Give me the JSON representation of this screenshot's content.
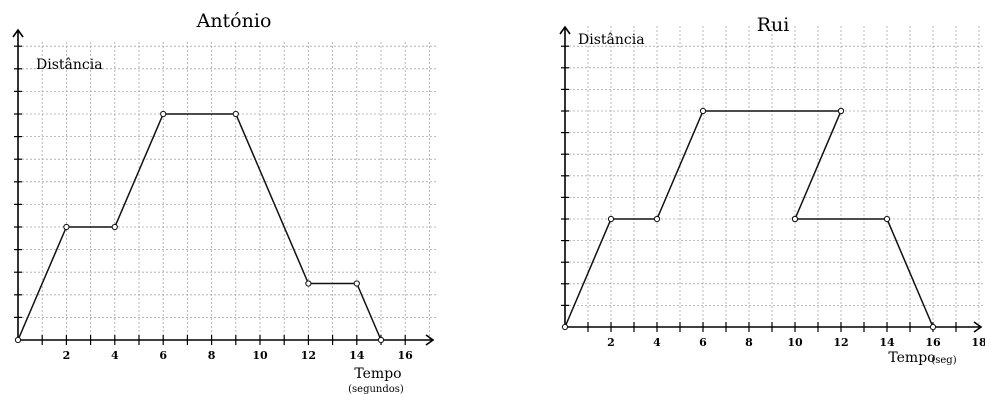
{
  "chart_data": [
    {
      "type": "line",
      "title": "António",
      "xlabel": "Tempo",
      "xlabel_sub": "(segundos)",
      "ylabel": "Distância",
      "x_ticks": [
        "2",
        "4",
        "6",
        "8",
        "10",
        "12",
        "14",
        "16"
      ],
      "xlim": [
        0,
        17.5
      ],
      "ylim": [
        0,
        13
      ],
      "grid": true,
      "x": [
        0,
        2,
        4,
        6,
        9,
        12,
        14,
        15
      ],
      "y": [
        0,
        5,
        5,
        10,
        10,
        2.5,
        2.5,
        0
      ]
    },
    {
      "type": "line",
      "title": "Rui",
      "xlabel": "Tempo",
      "xlabel_sub": "(seg)",
      "ylabel": "Distância",
      "x_ticks": [
        "2",
        "4",
        "6",
        "8",
        "10",
        "12",
        "14",
        "16",
        "18"
      ],
      "xlim": [
        0,
        18
      ],
      "ylim": [
        0,
        14
      ],
      "grid": true,
      "segments": [
        {
          "x": [
            0,
            2,
            4,
            6,
            12
          ],
          "y": [
            0,
            5,
            5,
            10,
            10
          ]
        },
        {
          "x": [
            10,
            12
          ],
          "y": [
            5,
            10
          ]
        },
        {
          "x": [
            10,
            14,
            16
          ],
          "y": [
            5,
            5,
            0
          ]
        }
      ]
    }
  ]
}
